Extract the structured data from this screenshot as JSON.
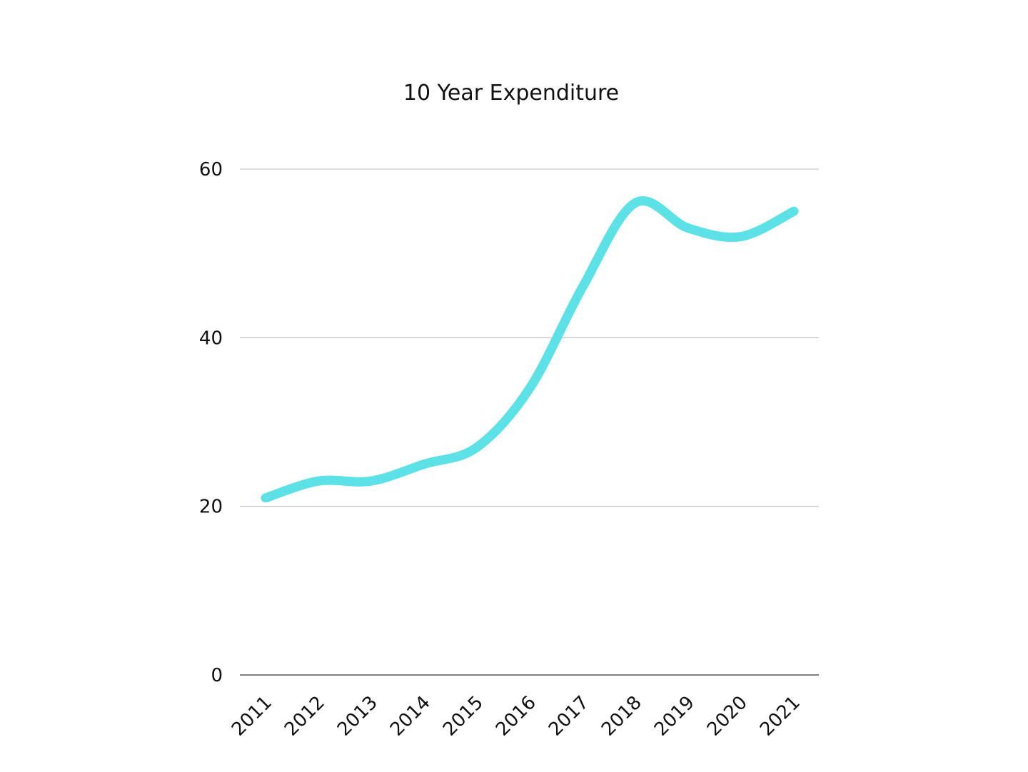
{
  "chart_data": {
    "type": "line",
    "title": "10 Year Expenditure",
    "xlabel": "",
    "ylabel": "",
    "categories": [
      "2011",
      "2012",
      "2013",
      "2014",
      "2015",
      "2016",
      "2017",
      "2018",
      "2019",
      "2020",
      "2021"
    ],
    "series": [
      {
        "values": [
          21,
          23,
          23,
          25,
          27,
          34,
          46,
          56,
          53,
          52,
          55
        ],
        "color": "#5ce1e6"
      }
    ],
    "ylim": [
      0,
      60
    ],
    "yticks": [
      "0",
      "20",
      "40",
      "60"
    ],
    "grid": true,
    "legend": "none"
  }
}
